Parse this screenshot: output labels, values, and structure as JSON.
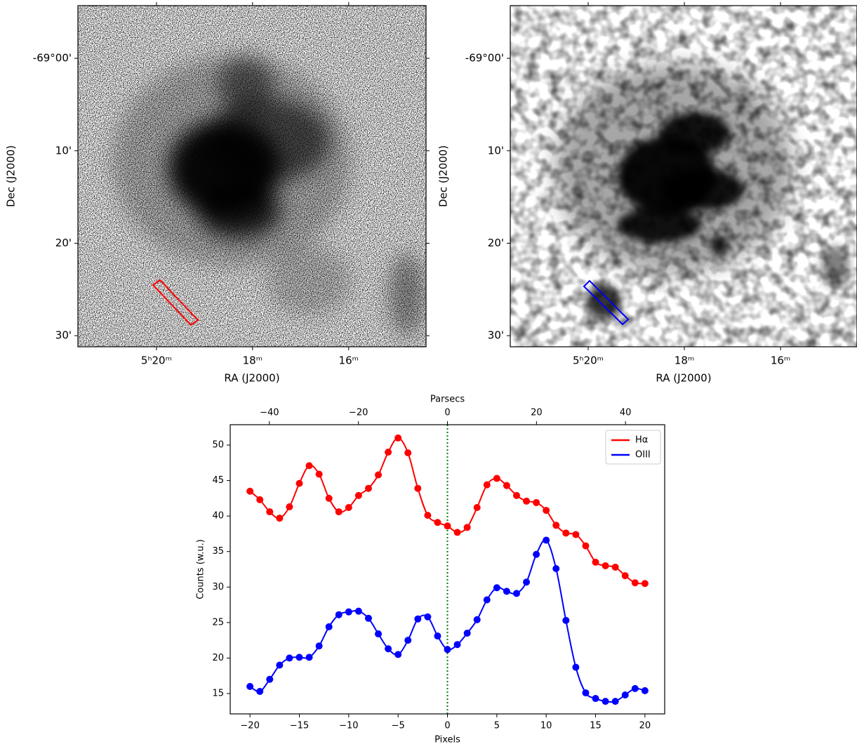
{
  "chart_data": [
    {
      "type": "image",
      "xlabel": "RA (J2000)",
      "ylabel": "Dec (J2000)",
      "slit_color": "#ff0000",
      "xlim": [
        21.635,
        14.39
      ],
      "xticks": [
        {
          "value": 20,
          "label": "5ʰ20ᵐ"
        },
        {
          "value": 18,
          "label": "18ᵐ"
        },
        {
          "value": 16,
          "label": "16ᵐ"
        }
      ],
      "ylim": [
        31.2,
        -5.7
      ],
      "yticks": [
        {
          "value": 0,
          "label": "-69°00'"
        },
        {
          "value": 10,
          "label": "10'"
        },
        {
          "value": 20,
          "label": "20'"
        },
        {
          "value": 30,
          "label": "30'"
        }
      ]
    },
    {
      "type": "image",
      "xlabel": "RA (J2000)",
      "ylabel": "Dec (J2000)",
      "slit_color": "#0000ff",
      "xlim": [
        21.62,
        14.41
      ],
      "xticks": [
        {
          "value": 20,
          "label": "5ʰ20ᵐ"
        },
        {
          "value": 18,
          "label": "18ᵐ"
        },
        {
          "value": 16,
          "label": "16ᵐ"
        }
      ],
      "ylim": [
        31.2,
        -5.7
      ],
      "yticks": [
        {
          "value": 0,
          "label": "-69°00'"
        },
        {
          "value": 10,
          "label": "10'"
        },
        {
          "value": 20,
          "label": "20'"
        },
        {
          "value": 30,
          "label": "30'"
        }
      ]
    },
    {
      "type": "line",
      "xlabel": "Pixels",
      "ylabel": "Counts (w.u.)",
      "x2label": "Parsecs",
      "legend": "upper right",
      "vline": 0,
      "vline_color": "#008000",
      "xlim": [
        -22,
        22
      ],
      "ylim": [
        12.13,
        52.87
      ],
      "x2lim": [
        -48.8,
        48.8
      ],
      "xticks": [
        {
          "value": -20,
          "label": "−20"
        },
        {
          "value": -15,
          "label": "−15"
        },
        {
          "value": -10,
          "label": "−10"
        },
        {
          "value": -5,
          "label": "−5"
        },
        0,
        5,
        10,
        15,
        20
      ],
      "x2ticks": [
        {
          "value": -40,
          "label": "−40"
        },
        {
          "value": -20,
          "label": "−20"
        },
        0,
        20,
        40
      ],
      "yticks": [
        15,
        20,
        25,
        30,
        35,
        40,
        45,
        50
      ],
      "x": [
        -20,
        -19,
        -18,
        -17,
        -16,
        -15,
        -14,
        -13,
        -12,
        -11,
        -10,
        -9,
        -8,
        -7,
        -6,
        -5,
        -4,
        -3,
        -2,
        -1,
        0,
        1,
        2,
        3,
        4,
        5,
        6,
        7,
        8,
        9,
        10,
        11,
        12,
        13,
        14,
        15,
        16,
        17,
        18,
        19,
        20
      ],
      "series": [
        {
          "name": "Hα",
          "color": "#ff0000",
          "values": [
            43.5,
            42.3,
            40.6,
            39.7,
            41.3,
            44.6,
            47.1,
            45.9,
            42.5,
            40.6,
            41.2,
            42.9,
            43.9,
            45.8,
            49.0,
            51.0,
            48.9,
            43.9,
            40.1,
            39.1,
            38.6,
            37.7,
            38.4,
            41.2,
            44.4,
            45.3,
            44.3,
            42.9,
            42.1,
            41.9,
            40.8,
            38.7,
            37.6,
            37.4,
            35.8,
            33.5,
            33.0,
            32.8,
            31.6,
            30.6,
            30.5
          ]
        },
        {
          "name": "OIII",
          "color": "#0000ff",
          "values": [
            16.0,
            15.3,
            17.0,
            19.0,
            20.0,
            20.1,
            20.1,
            21.7,
            24.4,
            26.1,
            26.5,
            26.6,
            25.6,
            23.4,
            21.3,
            20.5,
            22.5,
            25.5,
            25.8,
            23.1,
            21.2,
            21.9,
            23.5,
            25.4,
            28.2,
            29.9,
            29.4,
            29.1,
            30.7,
            34.6,
            36.6,
            32.6,
            25.3,
            18.7,
            15.1,
            14.3,
            13.9,
            13.9,
            14.8,
            15.7,
            15.4
          ]
        }
      ]
    }
  ]
}
